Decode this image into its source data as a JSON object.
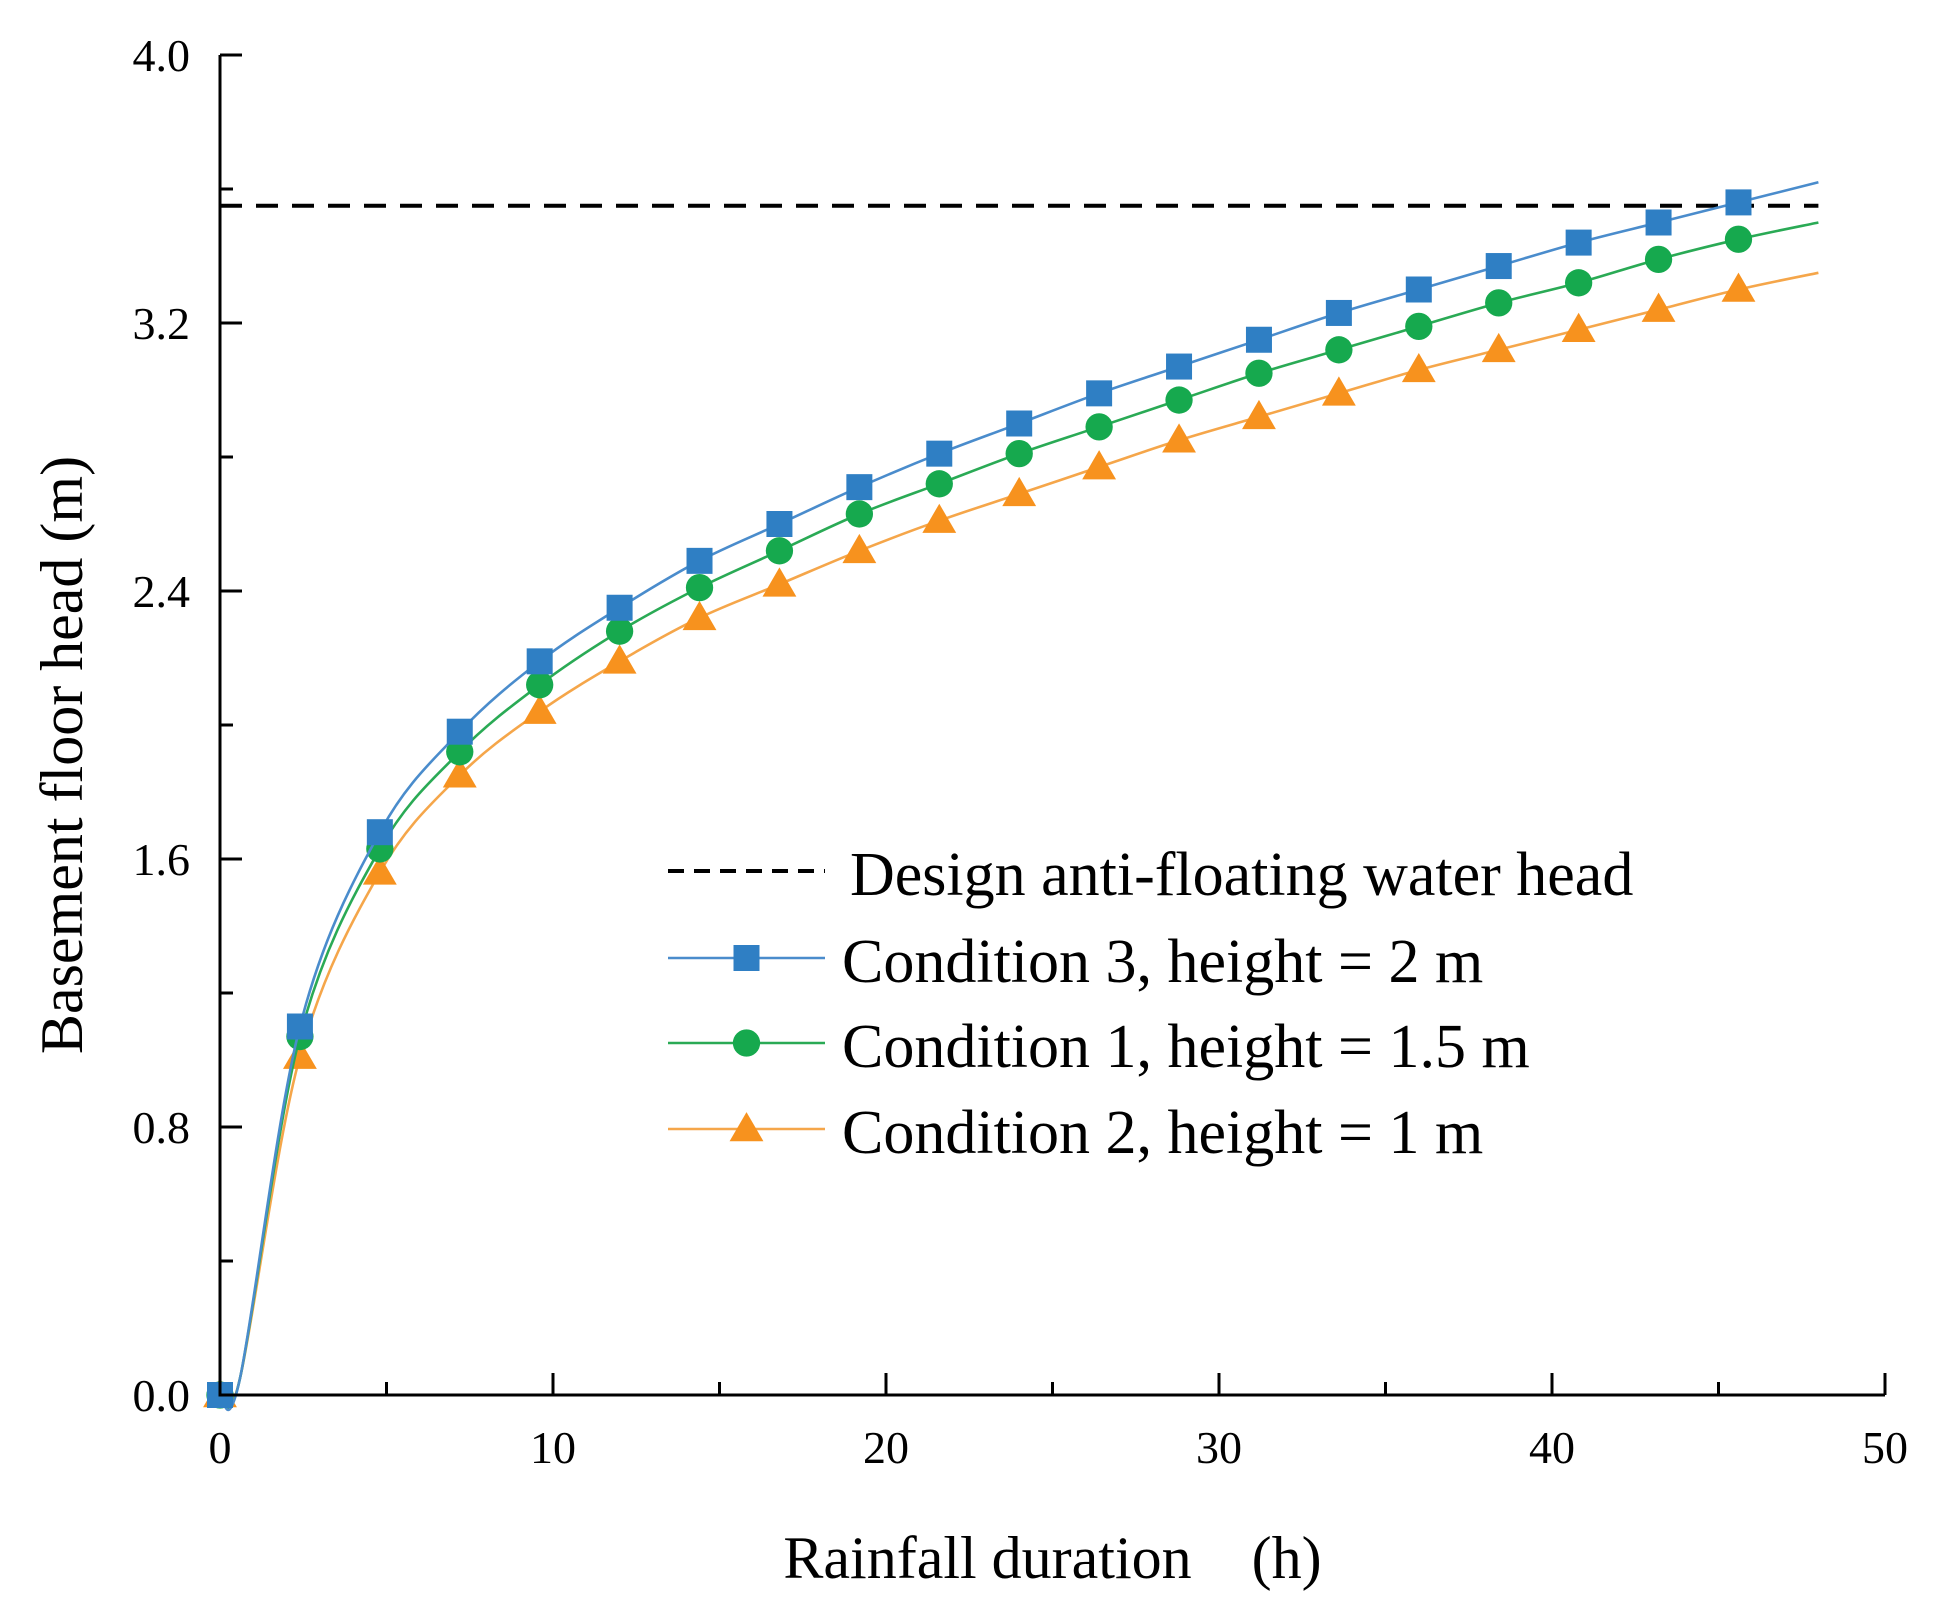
{
  "chart_data": {
    "type": "line",
    "title": "",
    "xlabel": "Rainfall duration　(h)",
    "ylabel": "Basement floor head (m)",
    "xlim": [
      0,
      50
    ],
    "ylim": [
      0,
      4.0
    ],
    "xticks": [
      0,
      10,
      20,
      30,
      40,
      50
    ],
    "xtick_labels": [
      "0",
      "10",
      "20",
      "30",
      "40",
      "50"
    ],
    "yticks": [
      0,
      0.8,
      1.6,
      2.4,
      3.2,
      4.0
    ],
    "ytick_labels": [
      "0.0",
      "0.8",
      "1.6",
      "2.4",
      "3.2",
      "4.0"
    ],
    "grid": false,
    "legend_position": "center-right",
    "reference_line": {
      "name": "Design anti-floating water head",
      "y": 3.55,
      "x_range": [
        0,
        48
      ],
      "style": "dashed",
      "color": "#000000"
    },
    "series": [
      {
        "name": "Condition 3, height = 2 m",
        "color": "#4a8ccc",
        "marker_color": "#2f7fc4",
        "marker": "square",
        "x": [
          0,
          2.4,
          4.8,
          7.2,
          9.6,
          12.0,
          14.4,
          16.8,
          19.2,
          21.6,
          24.0,
          26.4,
          28.8,
          31.2,
          33.6,
          36.0,
          38.4,
          40.8,
          43.2,
          45.6
        ],
        "values": [
          0,
          1.1,
          1.68,
          1.98,
          2.19,
          2.35,
          2.49,
          2.6,
          2.71,
          2.81,
          2.9,
          2.99,
          3.07,
          3.15,
          3.23,
          3.3,
          3.37,
          3.44,
          3.5,
          3.56
        ],
        "curve_end": [
          48,
          3.62
        ]
      },
      {
        "name": "Condition 1, height = 1.5 m",
        "color": "#2aaa55",
        "marker_color": "#16a94e",
        "marker": "circle",
        "x": [
          0,
          2.4,
          4.8,
          7.2,
          9.6,
          12.0,
          14.4,
          16.8,
          19.2,
          21.6,
          24.0,
          26.4,
          28.8,
          31.2,
          33.6,
          36.0,
          38.4,
          40.8,
          43.2,
          45.6
        ],
        "values": [
          0,
          1.07,
          1.63,
          1.92,
          2.12,
          2.28,
          2.41,
          2.52,
          2.63,
          2.72,
          2.81,
          2.89,
          2.97,
          3.05,
          3.12,
          3.19,
          3.26,
          3.32,
          3.39,
          3.45
        ],
        "curve_end": [
          48,
          3.5
        ]
      },
      {
        "name": "Condition 2, height = 1 m",
        "color": "#f5a64a",
        "marker_color": "#f7921e",
        "marker": "triangle",
        "x": [
          0,
          2.4,
          4.8,
          7.2,
          9.6,
          12.0,
          14.4,
          16.8,
          19.2,
          21.6,
          24.0,
          26.4,
          28.8,
          31.2,
          33.6,
          36.0,
          38.4,
          40.8,
          43.2,
          45.6
        ],
        "values": [
          0,
          1.01,
          1.56,
          1.85,
          2.04,
          2.19,
          2.32,
          2.42,
          2.52,
          2.61,
          2.69,
          2.77,
          2.85,
          2.92,
          2.99,
          3.06,
          3.12,
          3.18,
          3.24,
          3.3
        ],
        "curve_end": [
          48,
          3.35
        ]
      }
    ]
  }
}
